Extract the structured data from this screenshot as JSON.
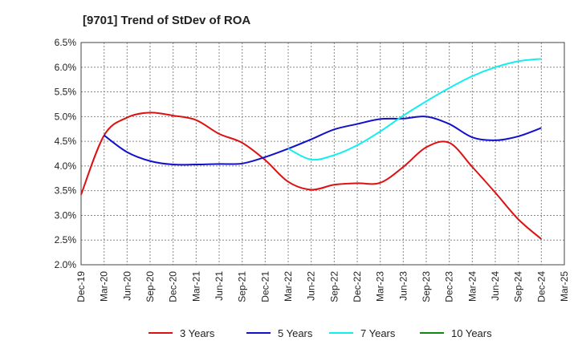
{
  "chart_data": {
    "type": "line",
    "title": "[9701]  Trend of StDev of ROA",
    "xlabel": "",
    "ylabel": "",
    "ylim": [
      2.0,
      6.5
    ],
    "yticks": [
      "2.0%",
      "2.5%",
      "3.0%",
      "3.5%",
      "4.0%",
      "4.5%",
      "5.0%",
      "5.5%",
      "6.0%",
      "6.5%"
    ],
    "categories": [
      "Dec-19",
      "Mar-20",
      "Jun-20",
      "Sep-20",
      "Dec-20",
      "Mar-21",
      "Jun-21",
      "Sep-21",
      "Dec-21",
      "Mar-22",
      "Jun-22",
      "Sep-22",
      "Dec-22",
      "Mar-23",
      "Jun-23",
      "Sep-23",
      "Dec-23",
      "Mar-24",
      "Jun-24",
      "Sep-24",
      "Dec-24",
      "Mar-25"
    ],
    "grid": true,
    "legend_position": "bottom",
    "series": [
      {
        "name": "3 Years",
        "color": "#dd1111",
        "values": [
          3.42,
          4.62,
          4.98,
          5.08,
          5.02,
          4.93,
          4.65,
          4.47,
          4.12,
          3.68,
          3.52,
          3.62,
          3.65,
          3.66,
          3.98,
          4.38,
          4.47,
          3.98,
          3.46,
          2.92,
          2.52,
          null
        ]
      },
      {
        "name": "5 Years",
        "color": "#1111cc",
        "values": [
          null,
          4.62,
          4.28,
          4.1,
          4.03,
          4.03,
          4.04,
          4.05,
          4.18,
          4.35,
          4.54,
          4.74,
          4.85,
          4.95,
          4.96,
          5.0,
          4.85,
          4.58,
          4.52,
          4.6,
          4.77,
          null
        ]
      },
      {
        "name": "7 Years",
        "color": "#11eeee",
        "values": [
          null,
          null,
          null,
          null,
          null,
          null,
          null,
          null,
          null,
          4.35,
          4.13,
          4.22,
          4.42,
          4.7,
          5.02,
          5.31,
          5.58,
          5.82,
          6.0,
          6.12,
          6.17,
          null
        ]
      },
      {
        "name": "10 Years",
        "color": "#118811",
        "values": [
          null,
          null,
          null,
          null,
          null,
          null,
          null,
          null,
          null,
          null,
          null,
          null,
          null,
          null,
          null,
          null,
          null,
          null,
          null,
          null,
          null,
          null
        ]
      }
    ]
  }
}
